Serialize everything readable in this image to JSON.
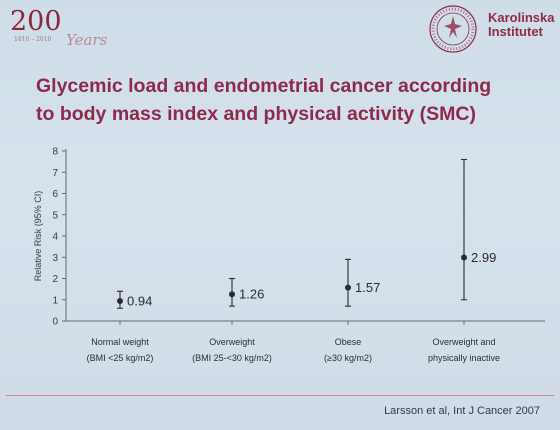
{
  "slide": {
    "anniversary": {
      "number": "200",
      "years": "1810 – 2010",
      "script": "Years"
    },
    "brand": {
      "line1": "Karolinska",
      "line2": "Institutet"
    },
    "title": {
      "line1": "Glycemic load and endometrial cancer according",
      "line2": "to body mass index and physical activity (SMC)"
    },
    "reference": "Larsson et al, Int J Cancer 2007",
    "colors": {
      "title": "#8d2a4e",
      "brand": "#8e2b48",
      "marks": "#2e2a2e",
      "axis": "#6a6a6a"
    },
    "seal_icon": "karolinska-seal"
  },
  "chart_data": {
    "type": "scatter",
    "title": "",
    "ylabel": "Relative Risk (95% CI)",
    "ylim": [
      0,
      8
    ],
    "yticks": [
      "0",
      "1",
      "2",
      "3",
      "4",
      "5",
      "6",
      "7",
      "8"
    ],
    "grid": false,
    "categories": [
      {
        "line1": "Normal weight",
        "line2": "(BMI <25 kg/m2)"
      },
      {
        "line1": "Overweight",
        "line2": "(BMI 25-<30 kg/m2)"
      },
      {
        "line1": "Obese",
        "line2": "(≥30 kg/m2)"
      },
      {
        "line1": "Overweight and",
        "line2": "physically inactive"
      }
    ],
    "points": [
      {
        "value": 0.94,
        "label": "0.94",
        "ci": [
          0.6,
          1.4
        ]
      },
      {
        "value": 1.26,
        "label": "1.26",
        "ci": [
          0.7,
          2.0
        ]
      },
      {
        "value": 1.57,
        "label": "1.57",
        "ci": [
          0.7,
          2.9
        ]
      },
      {
        "value": 2.99,
        "label": "2.99",
        "ci": [
          1.0,
          7.6
        ]
      }
    ]
  }
}
